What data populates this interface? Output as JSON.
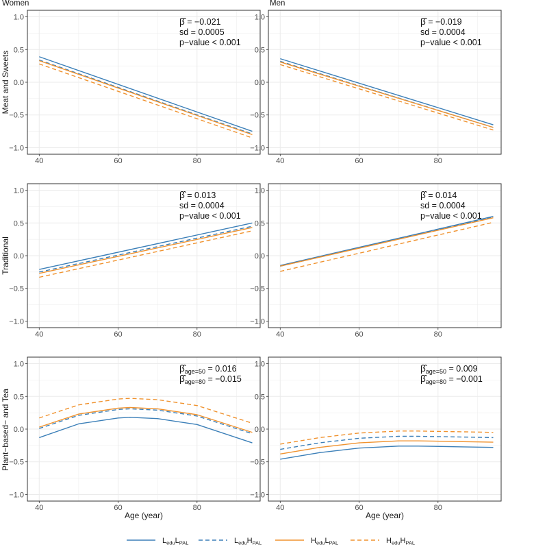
{
  "figure": {
    "column_titles": [
      "Women",
      "Men"
    ],
    "row_labels": [
      "Meat and Sweets",
      "Traditional",
      "Plant−based− and Tea"
    ],
    "x_axis_title": "Age (year)"
  },
  "colors": {
    "blue": "#3b7fb8",
    "orange": "#f0922e",
    "grid": "#ebebeb",
    "border": "#333333",
    "tick_text": "#4d4d4d"
  },
  "legend": [
    {
      "main1": "L",
      "sub1": "edu",
      "main2": "L",
      "sub2": "PAL",
      "color": "blue",
      "dash": false
    },
    {
      "main1": "L",
      "sub1": "edu",
      "main2": "H",
      "sub2": "PAL",
      "color": "blue",
      "dash": true
    },
    {
      "main1": "H",
      "sub1": "edu",
      "main2": "L",
      "sub2": "PAL",
      "color": "orange",
      "dash": false
    },
    {
      "main1": "H",
      "sub1": "edu",
      "main2": "H",
      "sub2": "PAL",
      "color": "orange",
      "dash": true
    }
  ],
  "chart_data": [
    {
      "type": "line",
      "panel": "Meat and Sweets / Women",
      "xlim": [
        37,
        96
      ],
      "ylim": [
        -1.1,
        1.1
      ],
      "xticks": [
        40,
        60,
        80
      ],
      "yticks": [
        -1.0,
        -0.5,
        0.0,
        0.5,
        1.0
      ],
      "annotation": [
        {
          "sym": "β̂",
          "text": " = −0.021"
        },
        {
          "text": "sd = 0.0005"
        },
        {
          "text": "p−value < 0.001"
        }
      ],
      "series": [
        {
          "name": "LeduLPAL",
          "color": "blue",
          "dash": false,
          "x": [
            40,
            94
          ],
          "y": [
            0.39,
            -0.75
          ]
        },
        {
          "name": "LeduHPAL",
          "color": "blue",
          "dash": true,
          "x": [
            40,
            94
          ],
          "y": [
            0.34,
            -0.79
          ]
        },
        {
          "name": "HeduLPAL",
          "color": "orange",
          "dash": false,
          "x": [
            40,
            94
          ],
          "y": [
            0.33,
            -0.8
          ]
        },
        {
          "name": "HeduHPAL",
          "color": "orange",
          "dash": true,
          "x": [
            40,
            94
          ],
          "y": [
            0.28,
            -0.85
          ]
        }
      ]
    },
    {
      "type": "line",
      "panel": "Meat and Sweets / Men",
      "xlim": [
        37,
        96
      ],
      "ylim": [
        -1.1,
        1.1
      ],
      "xticks": [
        40,
        60,
        80
      ],
      "yticks": [
        -1.0,
        -0.5,
        0.0,
        0.5,
        1.0
      ],
      "annotation": [
        {
          "sym": "β̂",
          "text": " = −0.019"
        },
        {
          "text": "sd = 0.0004"
        },
        {
          "text": "p−value < 0.001"
        }
      ],
      "series": [
        {
          "name": "LeduLPAL",
          "color": "blue",
          "dash": false,
          "x": [
            40,
            94
          ],
          "y": [
            0.36,
            -0.65
          ]
        },
        {
          "name": "LeduHPAL",
          "color": "blue",
          "dash": true,
          "x": [
            40,
            94
          ],
          "y": [
            0.32,
            -0.69
          ]
        },
        {
          "name": "HeduLPAL",
          "color": "orange",
          "dash": false,
          "x": [
            40,
            94
          ],
          "y": [
            0.31,
            -0.69
          ]
        },
        {
          "name": "HeduHPAL",
          "color": "orange",
          "dash": true,
          "x": [
            40,
            94
          ],
          "y": [
            0.27,
            -0.73
          ]
        }
      ]
    },
    {
      "type": "line",
      "panel": "Traditional / Women",
      "xlim": [
        37,
        96
      ],
      "ylim": [
        -1.1,
        1.1
      ],
      "xticks": [
        40,
        60,
        80
      ],
      "yticks": [
        -1.0,
        -0.5,
        0.0,
        0.5,
        1.0
      ],
      "annotation": [
        {
          "sym": "β̂",
          "text": " = 0.013"
        },
        {
          "text": "sd = 0.0004"
        },
        {
          "text": "p−value < 0.001"
        }
      ],
      "series": [
        {
          "name": "LeduLPAL",
          "color": "blue",
          "dash": false,
          "x": [
            40,
            94
          ],
          "y": [
            -0.21,
            0.5
          ]
        },
        {
          "name": "LeduHPAL",
          "color": "blue",
          "dash": true,
          "x": [
            40,
            94
          ],
          "y": [
            -0.25,
            0.45
          ]
        },
        {
          "name": "HeduLPAL",
          "color": "orange",
          "dash": false,
          "x": [
            40,
            94
          ],
          "y": [
            -0.27,
            0.43
          ]
        },
        {
          "name": "HeduHPAL",
          "color": "orange",
          "dash": true,
          "x": [
            40,
            94
          ],
          "y": [
            -0.33,
            0.38
          ]
        }
      ]
    },
    {
      "type": "line",
      "panel": "Traditional / Men",
      "xlim": [
        37,
        96
      ],
      "ylim": [
        -1.1,
        1.1
      ],
      "xticks": [
        40,
        60,
        80
      ],
      "yticks": [
        -1.0,
        -0.5,
        0.0,
        0.5,
        1.0
      ],
      "annotation": [
        {
          "sym": "β̂",
          "text": " = 0.014"
        },
        {
          "text": "sd = 0.0004"
        },
        {
          "text": "p−value < 0.001"
        }
      ],
      "series": [
        {
          "name": "LeduLPAL",
          "color": "blue",
          "dash": false,
          "x": [
            40,
            94
          ],
          "y": [
            -0.15,
            0.6
          ]
        },
        {
          "name": "LeduHPAL",
          "color": "blue",
          "dash": true,
          "x": [
            40,
            94
          ],
          "y": [
            -0.16,
            0.59
          ]
        },
        {
          "name": "HeduLPAL",
          "color": "orange",
          "dash": false,
          "x": [
            40,
            94
          ],
          "y": [
            -0.16,
            0.58
          ]
        },
        {
          "name": "HeduHPAL",
          "color": "orange",
          "dash": true,
          "x": [
            40,
            94
          ],
          "y": [
            -0.24,
            0.51
          ]
        }
      ]
    },
    {
      "type": "line",
      "panel": "Plant−based− and Tea / Women",
      "xlim": [
        37,
        96
      ],
      "ylim": [
        -1.1,
        1.1
      ],
      "xticks": [
        40,
        60,
        80
      ],
      "yticks": [
        -1.0,
        -0.5,
        0.0,
        0.5,
        1.0
      ],
      "annotation": [
        {
          "sym": "β̂",
          "sub": "age=50",
          "text": " = 0.016"
        },
        {
          "sym": "β̂",
          "sub": "age=80",
          "text": " = −0.015"
        }
      ],
      "series": [
        {
          "name": "LeduLPAL",
          "color": "blue",
          "dash": false,
          "x": [
            40,
            50,
            60,
            63,
            70,
            80,
            94
          ],
          "y": [
            -0.13,
            0.08,
            0.17,
            0.18,
            0.16,
            0.07,
            -0.21
          ]
        },
        {
          "name": "LeduHPAL",
          "color": "blue",
          "dash": true,
          "x": [
            40,
            50,
            60,
            63,
            70,
            80,
            94
          ],
          "y": [
            0.01,
            0.21,
            0.3,
            0.31,
            0.29,
            0.2,
            -0.07
          ]
        },
        {
          "name": "HeduLPAL",
          "color": "orange",
          "dash": false,
          "x": [
            40,
            50,
            60,
            63,
            70,
            80,
            94
          ],
          "y": [
            0.03,
            0.23,
            0.32,
            0.33,
            0.31,
            0.22,
            -0.05
          ]
        },
        {
          "name": "HeduHPAL",
          "color": "orange",
          "dash": true,
          "x": [
            40,
            50,
            60,
            63,
            70,
            80,
            94
          ],
          "y": [
            0.17,
            0.37,
            0.46,
            0.47,
            0.45,
            0.36,
            0.09
          ]
        }
      ]
    },
    {
      "type": "line",
      "panel": "Plant−based− and Tea / Men",
      "xlim": [
        37,
        96
      ],
      "ylim": [
        -1.1,
        1.1
      ],
      "xticks": [
        40,
        60,
        80
      ],
      "yticks": [
        -1.0,
        -0.5,
        0.0,
        0.5,
        1.0
      ],
      "annotation": [
        {
          "sym": "β̂",
          "sub": "age=50",
          "text": " = 0.009"
        },
        {
          "sym": "β̂",
          "sub": "age=80",
          "text": " = −0.001"
        }
      ],
      "series": [
        {
          "name": "LeduLPAL",
          "color": "blue",
          "dash": false,
          "x": [
            40,
            50,
            60,
            70,
            75,
            85,
            94
          ],
          "y": [
            -0.46,
            -0.36,
            -0.29,
            -0.26,
            -0.26,
            -0.27,
            -0.28
          ]
        },
        {
          "name": "LeduHPAL",
          "color": "blue",
          "dash": true,
          "x": [
            40,
            50,
            60,
            70,
            75,
            85,
            94
          ],
          "y": [
            -0.31,
            -0.21,
            -0.14,
            -0.11,
            -0.11,
            -0.12,
            -0.13
          ]
        },
        {
          "name": "HeduLPAL",
          "color": "orange",
          "dash": false,
          "x": [
            40,
            50,
            60,
            70,
            75,
            85,
            94
          ],
          "y": [
            -0.38,
            -0.28,
            -0.21,
            -0.18,
            -0.18,
            -0.19,
            -0.2
          ]
        },
        {
          "name": "HeduHPAL",
          "color": "orange",
          "dash": true,
          "x": [
            40,
            50,
            60,
            70,
            75,
            85,
            94
          ],
          "y": [
            -0.23,
            -0.13,
            -0.06,
            -0.03,
            -0.03,
            -0.04,
            -0.05
          ]
        }
      ]
    }
  ]
}
